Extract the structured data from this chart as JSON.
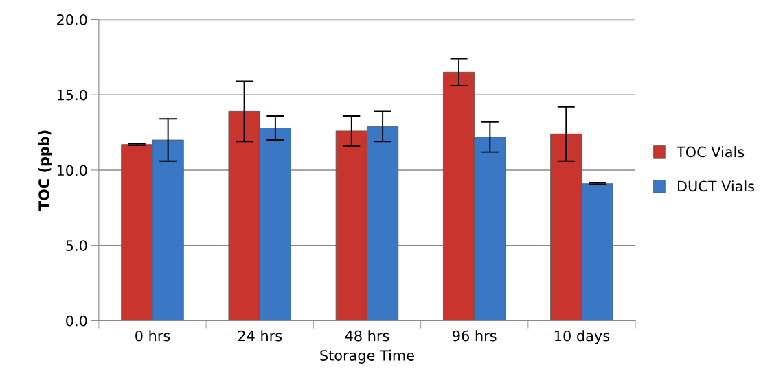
{
  "chart_data": {
    "type": "bar",
    "xlabel": "Storage Time",
    "ylabel": "TOC (ppb)",
    "categories": [
      "0 hrs",
      "24 hrs",
      "48 hrs",
      "96 hrs",
      "10 days"
    ],
    "series": [
      {
        "name": "TOC Vials",
        "color": "#c8342e",
        "values": [
          11.7,
          13.9,
          12.6,
          16.5,
          12.4
        ],
        "errors": [
          0.05,
          2.0,
          1.0,
          0.9,
          1.8
        ]
      },
      {
        "name": "DUCT Vials",
        "color": "#3a78c6",
        "values": [
          12.0,
          12.8,
          12.9,
          12.2,
          9.1
        ],
        "errors": [
          1.4,
          0.8,
          1.0,
          1.0,
          0.05
        ]
      }
    ],
    "ylim": [
      0,
      20
    ],
    "yticks": [
      {
        "value": 0,
        "label": "0.0"
      },
      {
        "value": 5,
        "label": "5.0"
      },
      {
        "value": 10,
        "label": "10.0"
      },
      {
        "value": 15,
        "label": "15.0"
      },
      {
        "value": 20,
        "label": "20.0"
      }
    ],
    "grid": "y",
    "legend": "right"
  }
}
